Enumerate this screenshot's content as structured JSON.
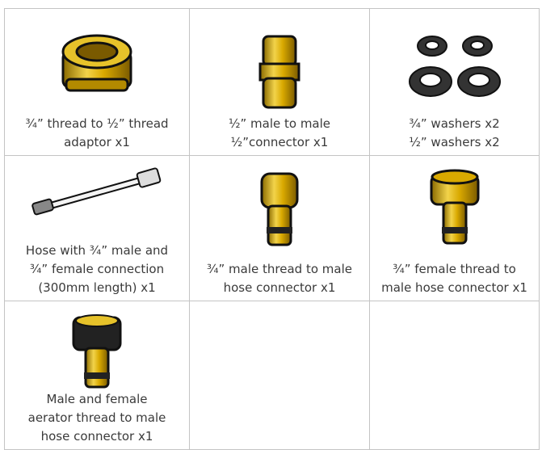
{
  "cells": [
    {
      "caption": [
        "¾” thread to ½” thread",
        "adaptor x1"
      ]
    },
    {
      "caption": [
        "½” male to male",
        "½”connector x1"
      ]
    },
    {
      "caption": [
        "¾” washers x2",
        "½” washers x2"
      ]
    },
    {
      "caption": [
        "Hose with ¾” male and",
        "¾” female connection",
        "(300mm length) x1"
      ]
    },
    {
      "caption": [
        "¾” male thread to male",
        "hose connector x1"
      ]
    },
    {
      "caption": [
        "¾” female thread to",
        "male hose connector x1"
      ]
    },
    {
      "caption": [
        "Male and female",
        "aerator thread to male",
        "hose connector x1"
      ]
    }
  ]
}
